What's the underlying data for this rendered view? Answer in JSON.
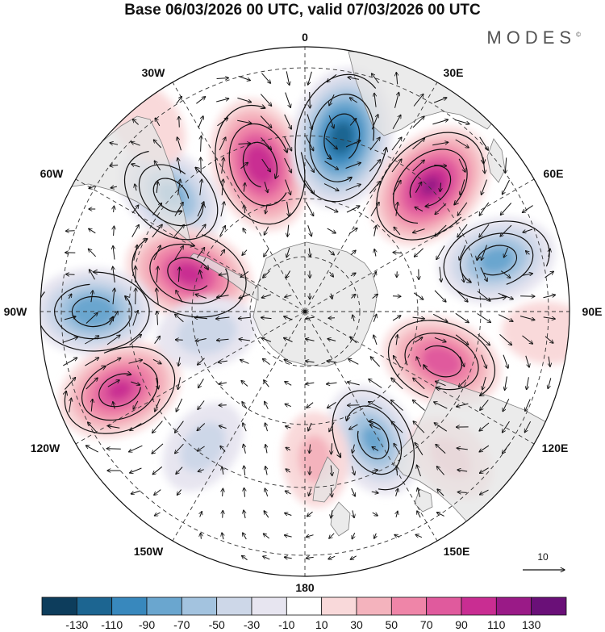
{
  "title": "Base 06/03/2026 00 UTC, valid 07/03/2026 00 UTC",
  "brand": "MODES",
  "brand_mark": "©",
  "longitude_labels": {
    "top": "0",
    "top_right": "30E",
    "right_upper": "60E",
    "right": "90E",
    "right_lower": "120E",
    "bottom_right": "150E",
    "bottom": "180",
    "bottom_left": "150W",
    "left_lower": "120W",
    "left": "90W",
    "left_upper": "60W",
    "top_left": "30W"
  },
  "vector_scale_label": "10",
  "colorbar": {
    "colors": [
      "#0d3d5c",
      "#1c6591",
      "#3888bd",
      "#6aa6cf",
      "#a3c3df",
      "#cdd7e8",
      "#e7e5f0",
      "#ffffff",
      "#f9d9da",
      "#f4b3bd",
      "#ef85a8",
      "#e05a9d",
      "#c92d92",
      "#9a1a87",
      "#6a1078"
    ],
    "ticks": [
      "-130",
      "-110",
      "-90",
      "-70",
      "-50",
      "-30",
      "-10",
      "10",
      "30",
      "50",
      "70",
      "90",
      "110",
      "130"
    ]
  },
  "anomaly_centers": [
    {
      "lon": -17,
      "colat": 0.58,
      "value": 105
    },
    {
      "lon": 12,
      "colat": 0.67,
      "value": -120
    },
    {
      "lon": 45,
      "colat": 0.67,
      "value": 110
    },
    {
      "lon": 75,
      "colat": 0.75,
      "value": -75
    },
    {
      "lon": 110,
      "colat": 0.55,
      "value": 80
    },
    {
      "lon": 152,
      "colat": 0.55,
      "value": -70
    },
    {
      "lon": -49,
      "colat": 0.67,
      "value": -70
    },
    {
      "lon": -72,
      "colat": 0.46,
      "value": 95
    },
    {
      "lon": -90,
      "colat": 0.8,
      "value": -85
    },
    {
      "lon": -113,
      "colat": 0.76,
      "value": 90
    },
    {
      "lon": -102,
      "colat": 0.38,
      "value": -40
    },
    {
      "lon": -143,
      "colat": 0.64,
      "value": -35
    },
    {
      "lon": 176,
      "colat": 0.56,
      "value": 30
    },
    {
      "lon": 135,
      "colat": 0.78,
      "value": 30
    },
    {
      "lon": -40,
      "colat": 0.93,
      "value": 25
    },
    {
      "lon": 95,
      "colat": 0.92,
      "value": 20
    }
  ]
}
